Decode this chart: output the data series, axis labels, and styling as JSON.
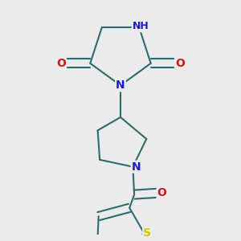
{
  "bg_color": "#ebebeb",
  "bond_color": "#2d6b6b",
  "bond_width": 1.5,
  "atom_colors": {
    "N": "#1a1acc",
    "O": "#cc1a1a",
    "S": "#cccc00",
    "H": "#607070",
    "C": "#2d6b6b"
  }
}
